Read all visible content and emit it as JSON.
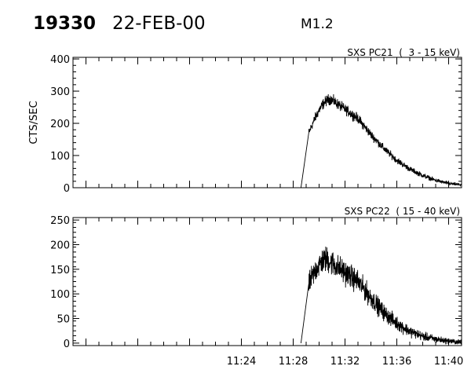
{
  "header": {
    "event_id": "19330",
    "date": "22-FEB-00",
    "flare_class": "M1.2"
  },
  "chart_data": [
    {
      "type": "line",
      "title": "SXS PC21  (  3 - 15 keV)",
      "ylabel": "CTS/SEC",
      "xlabel": "",
      "ylim": [
        0,
        405
      ],
      "yticks": [
        0,
        100,
        200,
        300,
        400
      ],
      "xlim_minutes": [
        11.0,
        41.0
      ],
      "xticks": [
        "11:24",
        "11:28",
        "11:32",
        "11:36",
        "11:40"
      ],
      "grid": false,
      "profile": {
        "onset": "11:28.6",
        "rise_to": "11:29.2",
        "rise_value": 170,
        "peak": "11:30.9",
        "peak_value": 275,
        "decay_points": [
          [
            "11:33",
            215
          ],
          [
            "11:34",
            165
          ],
          [
            "11:35",
            122
          ],
          [
            "11:36",
            85
          ],
          [
            "11:37",
            58
          ],
          [
            "11:38",
            38
          ],
          [
            "11:39",
            23
          ],
          [
            "11:40",
            13
          ],
          [
            "11:41",
            9
          ]
        ],
        "noise": 12
      }
    },
    {
      "type": "line",
      "title": "SXS PC22  ( 15 - 40 keV)",
      "ylabel": "",
      "xlabel": "",
      "ylim": [
        -5,
        255
      ],
      "yticks": [
        0,
        50,
        100,
        150,
        200,
        250
      ],
      "xlim_minutes": [
        11.0,
        41.0
      ],
      "xticks": [
        "11:24",
        "11:28",
        "11:32",
        "11:36",
        "11:40"
      ],
      "grid": false,
      "profile": {
        "onset": "11:28.6",
        "rise_to": "11:29.2",
        "rise_value": 120,
        "peak": "11:30.6",
        "peak_value": 170,
        "decay_points": [
          [
            "11:33",
            125
          ],
          [
            "11:34",
            92
          ],
          [
            "11:35",
            62
          ],
          [
            "11:36",
            40
          ],
          [
            "11:37",
            24
          ],
          [
            "11:38",
            14
          ],
          [
            "11:39",
            8
          ],
          [
            "11:40",
            4
          ],
          [
            "11:41",
            2
          ]
        ],
        "noise": 20
      }
    }
  ]
}
